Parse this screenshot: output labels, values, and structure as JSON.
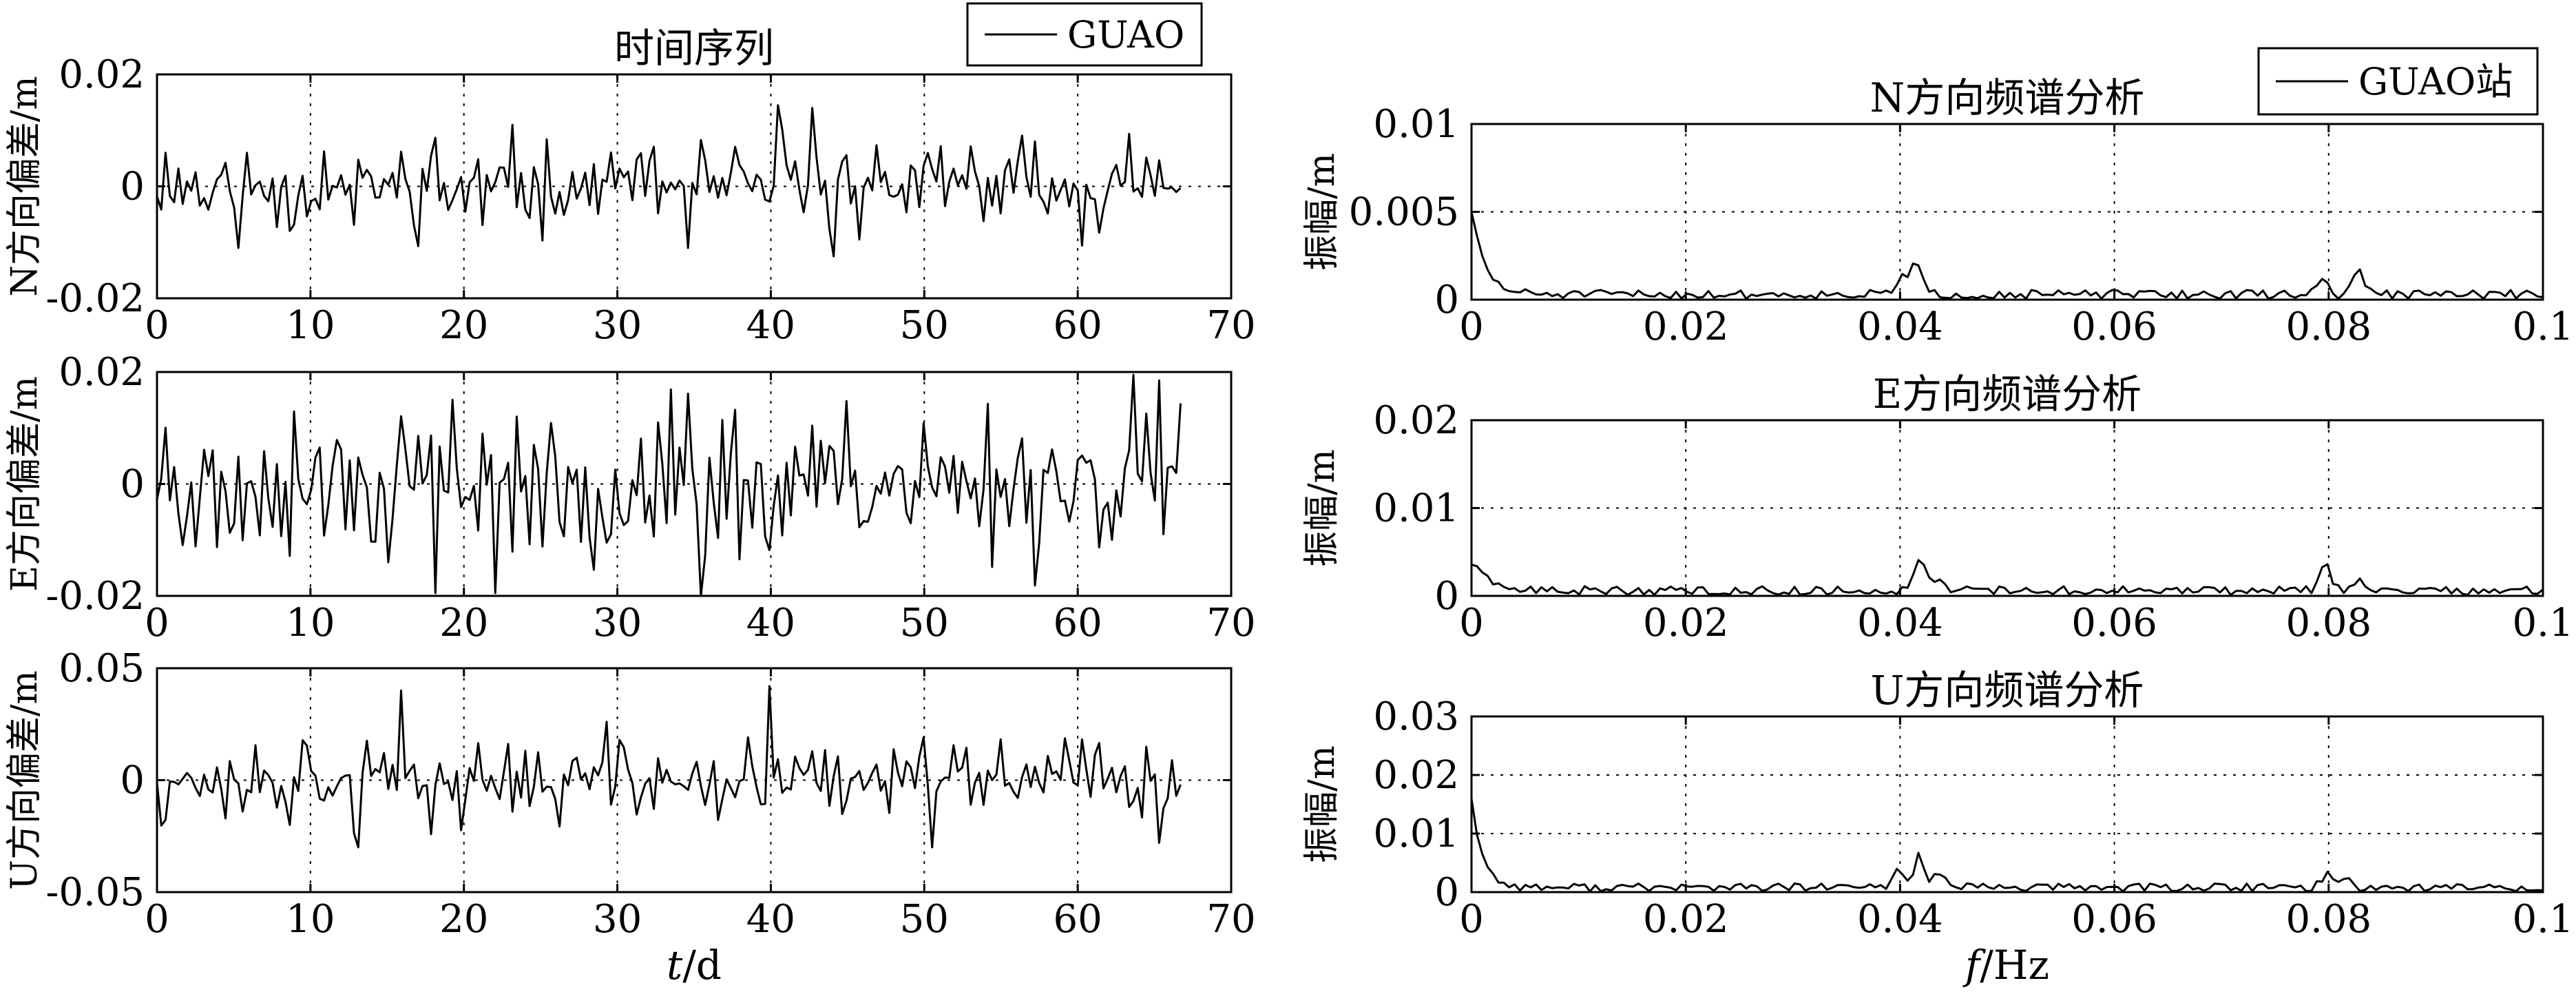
{
  "legends": {
    "left": "GUAO",
    "right": "GUAO站"
  },
  "chart_data": [
    {
      "id": "ts_n",
      "type": "line",
      "title": "时间序列",
      "xlabel": "",
      "ylabel": "N方向偏差/m",
      "xlim": [
        0,
        70
      ],
      "ylim": [
        -0.02,
        0.02
      ],
      "xticks": [
        0,
        10,
        20,
        30,
        40,
        50,
        60,
        70
      ],
      "xtick_labels": [
        "0",
        "10",
        "20",
        "30",
        "40",
        "50",
        "60",
        "70"
      ],
      "yticks": [
        -0.02,
        0,
        0.02
      ],
      "ytick_labels": [
        "-0.02",
        "0",
        "0.02"
      ],
      "grid": true,
      "legend": "top-right",
      "series": [
        {
          "name": "GUAO",
          "gen": {
            "n": 240,
            "amp": 0.0095,
            "seed": 11,
            "x_end": 66.7,
            "spikes": [
              [
                40.5,
                0.0145
              ],
              [
                42.8,
                0.014
              ],
              [
                44.2,
                -0.0125
              ],
              [
                34.5,
                -0.011
              ],
              [
                5.2,
                -0.011
              ]
            ]
          }
        }
      ]
    },
    {
      "id": "ts_e",
      "type": "line",
      "title": "",
      "xlabel": "",
      "ylabel": "E方向偏差/m",
      "xlim": [
        0,
        70
      ],
      "ylim": [
        -0.02,
        0.02
      ],
      "xticks": [
        0,
        10,
        20,
        30,
        40,
        50,
        60,
        70
      ],
      "xtick_labels": [
        "0",
        "10",
        "20",
        "30",
        "40",
        "50",
        "60",
        "70"
      ],
      "yticks": [
        -0.02,
        0,
        0.02
      ],
      "ytick_labels": [
        "-0.02",
        "0",
        "0.02"
      ],
      "grid": true,
      "legend": "none",
      "series": [
        {
          "name": "GUAO",
          "gen": {
            "n": 240,
            "amp": 0.0165,
            "seed": 23,
            "x_end": 66.7,
            "spikes": [
              [
                18.2,
                -0.0195
              ],
              [
                22.0,
                -0.0195
              ],
              [
                35.5,
                -0.02
              ],
              [
                63.5,
                0.0195
              ],
              [
                65.4,
                0.0185
              ]
            ]
          }
        }
      ]
    },
    {
      "id": "ts_u",
      "type": "line",
      "title": "",
      "xlabel": "t/d",
      "ylabel": "U方向偏差/m",
      "xlim": [
        0,
        70
      ],
      "ylim": [
        -0.05,
        0.05
      ],
      "xticks": [
        0,
        10,
        20,
        30,
        40,
        50,
        60,
        70
      ],
      "xtick_labels": [
        "0",
        "10",
        "20",
        "30",
        "40",
        "50",
        "60",
        "70"
      ],
      "yticks": [
        -0.05,
        0,
        0.05
      ],
      "ytick_labels": [
        "-0.05",
        "0",
        "0.05"
      ],
      "grid": true,
      "legend": "none",
      "series": [
        {
          "name": "GUAO",
          "gen": {
            "n": 240,
            "amp": 0.022,
            "seed": 37,
            "x_end": 66.7,
            "spikes": [
              [
                13.2,
                -0.03
              ],
              [
                16.0,
                0.04
              ],
              [
                39.8,
                0.042
              ],
              [
                50.5,
                -0.03
              ],
              [
                65.4,
                -0.028
              ]
            ]
          }
        }
      ]
    },
    {
      "id": "sp_n",
      "type": "line",
      "title": "N方向频谱分析",
      "xlabel": "",
      "ylabel": "振幅/m",
      "xlim": [
        0,
        0.1
      ],
      "ylim": [
        0,
        0.01
      ],
      "xticks": [
        0,
        0.02,
        0.04,
        0.06,
        0.08,
        0.1
      ],
      "xtick_labels": [
        "0",
        "0.02",
        "0.04",
        "0.06",
        "0.08",
        "0.1"
      ],
      "yticks": [
        0,
        0.005,
        0.01
      ],
      "ytick_labels": [
        "0",
        "0.005",
        "0.01"
      ],
      "grid": true,
      "legend": "top-right",
      "series": [
        {
          "name": "GUAO站",
          "gen": {
            "n": 200,
            "base": 0.0003,
            "noise": 0.00025,
            "seed": 51,
            "start": 0.0048,
            "decay": 0.0012,
            "peaks": [
              [
                0.0415,
                0.0018
              ],
              [
                0.0401,
                0.001
              ],
              [
                0.0828,
                0.0015
              ],
              [
                0.0793,
                0.0009
              ]
            ]
          }
        }
      ]
    },
    {
      "id": "sp_e",
      "type": "line",
      "title": "E方向频谱分析",
      "xlabel": "",
      "ylabel": "振幅/m",
      "xlim": [
        0,
        0.1
      ],
      "ylim": [
        0,
        0.02
      ],
      "xticks": [
        0,
        0.02,
        0.04,
        0.06,
        0.08,
        0.1
      ],
      "xtick_labels": [
        "0",
        "0.02",
        "0.04",
        "0.06",
        "0.08",
        "0.1"
      ],
      "yticks": [
        0,
        0.01,
        0.02
      ],
      "ytick_labels": [
        "0",
        "0.01",
        "0.02"
      ],
      "grid": true,
      "legend": "none",
      "series": [
        {
          "name": "GUAO站",
          "gen": {
            "n": 200,
            "base": 0.0006,
            "noise": 0.0005,
            "seed": 63,
            "start": 0.0032,
            "decay": 0.0015,
            "peaks": [
              [
                0.0418,
                0.004
              ],
              [
                0.0436,
                0.0018
              ],
              [
                0.0797,
                0.0028
              ],
              [
                0.0828,
                0.0016
              ]
            ]
          }
        }
      ]
    },
    {
      "id": "sp_u",
      "type": "line",
      "title": "U方向频谱分析",
      "xlabel": "f/Hz",
      "ylabel": "振幅/m",
      "xlim": [
        0,
        0.1
      ],
      "ylim": [
        0,
        0.03
      ],
      "xticks": [
        0,
        0.02,
        0.04,
        0.06,
        0.08,
        0.1
      ],
      "xtick_labels": [
        "0",
        "0.02",
        "0.04",
        "0.06",
        "0.08",
        "0.1"
      ],
      "yticks": [
        0,
        0.01,
        0.02,
        0.03
      ],
      "ytick_labels": [
        "0",
        "0.01",
        "0.02",
        "0.03"
      ],
      "grid": true,
      "legend": "none",
      "series": [
        {
          "name": "GUAO站",
          "gen": {
            "n": 200,
            "base": 0.0008,
            "noise": 0.0007,
            "seed": 77,
            "start": 0.0155,
            "decay": 0.001,
            "peaks": [
              [
                0.0418,
                0.0055
              ],
              [
                0.0398,
                0.003
              ],
              [
                0.0436,
                0.0025
              ],
              [
                0.0798,
                0.0022
              ],
              [
                0.0815,
                0.0018
              ]
            ]
          }
        }
      ]
    }
  ]
}
